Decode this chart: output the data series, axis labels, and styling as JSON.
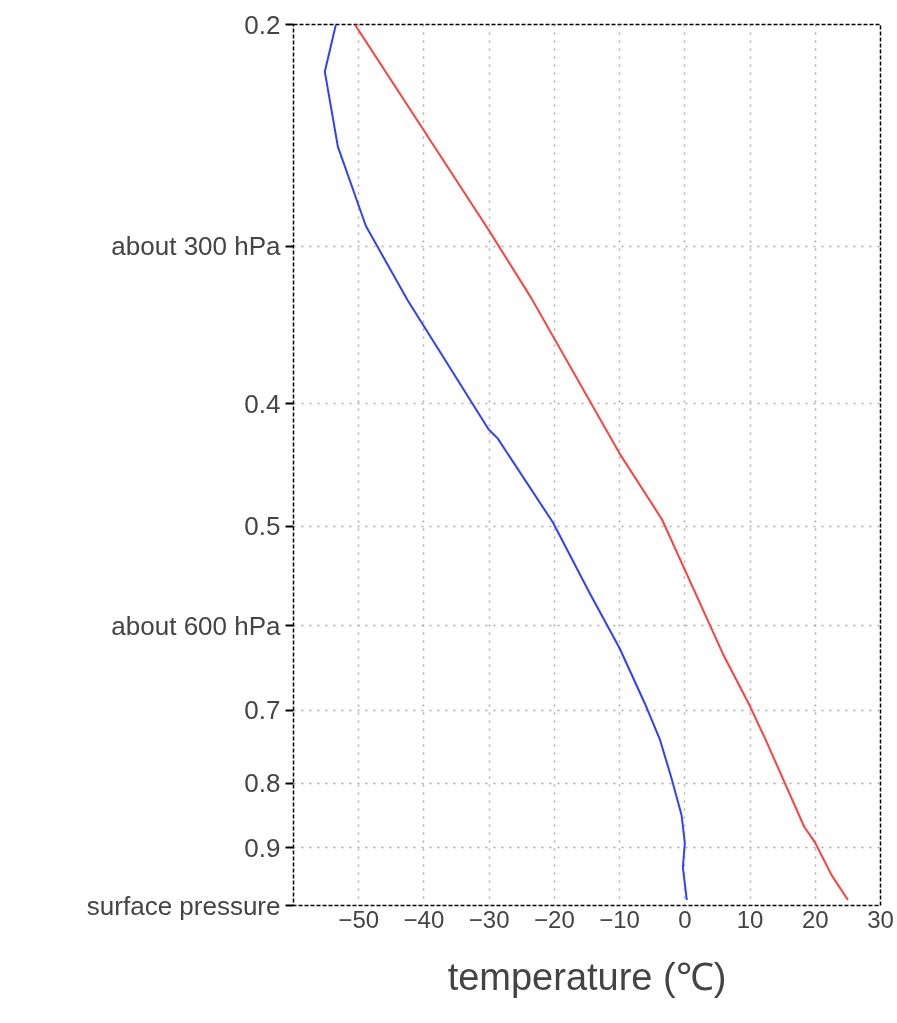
{
  "chart_data": {
    "type": "line",
    "xlabel": "temperature (℃)",
    "log": "y",
    "grid": true,
    "xlim": [
      -60,
      30
    ],
    "xticks": [
      {
        "value": -60,
        "label": null
      },
      -50,
      -40,
      -30,
      -20,
      -10,
      0,
      10,
      20,
      30
    ],
    "ylim": [
      1.0,
      0.2
    ],
    "yticks": [
      0.2,
      {
        "value": 0.3,
        "label": "about 300 hPa"
      },
      0.4,
      0.5,
      {
        "value": 0.6,
        "label": "about 600 hPa"
      },
      0.7,
      0.8,
      0.9,
      {
        "value": 1.0,
        "label": "surface pressure"
      }
    ],
    "series": [
      {
        "color": "#ff4040",
        "x": [
          -50.6,
          -30.1,
          -23.5,
          -10,
          -3.5,
          6.0,
          10,
          12.4,
          18.3,
          20,
          22.5,
          25
        ],
        "values": [
          0.2,
          0.291,
          0.33,
          0.438,
          0.494,
          0.634,
          0.695,
          0.739,
          0.866,
          0.892,
          0.946,
          0.99
        ]
      },
      {
        "color": "#3040ff",
        "x": [
          -53.5,
          -55.2,
          -53.2,
          -48.9,
          -42.5,
          -30.1,
          -28.7,
          -20.2,
          -14.6,
          -10,
          -6.1,
          -3.8,
          -2.0,
          -0.5,
          0,
          -0.3,
          0.3
        ],
        "values": [
          0.2,
          0.218,
          0.25,
          0.289,
          0.331,
          0.419,
          0.426,
          0.497,
          0.565,
          0.625,
          0.692,
          0.739,
          0.794,
          0.848,
          0.892,
          0.933,
          0.99
        ]
      }
    ]
  }
}
